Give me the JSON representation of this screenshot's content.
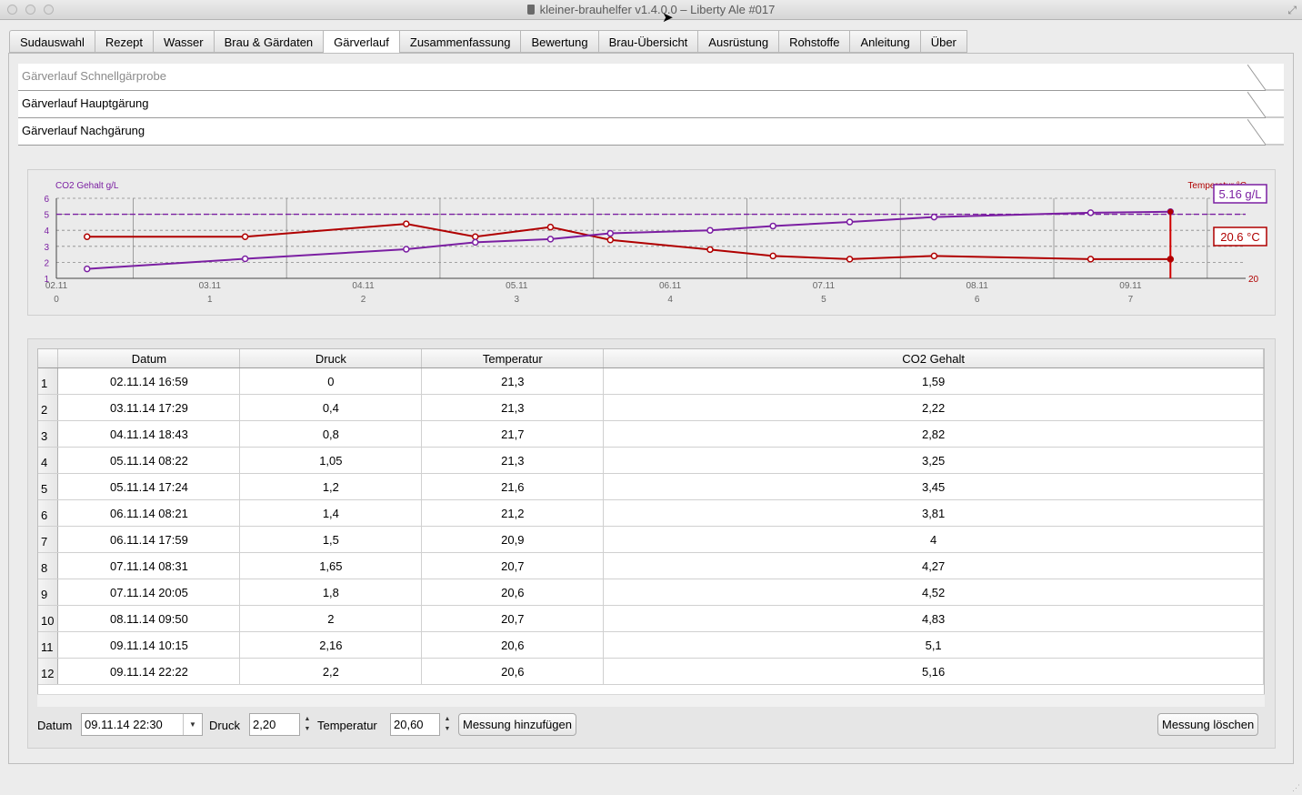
{
  "window": {
    "title": "kleiner-brauhelfer v1.4.0.0 – Liberty Ale #017"
  },
  "tabs": [
    {
      "label": "Sudauswahl",
      "active": false
    },
    {
      "label": "Rezept",
      "active": false
    },
    {
      "label": "Wasser",
      "active": false
    },
    {
      "label": "Brau & Gärdaten",
      "active": false
    },
    {
      "label": "Gärverlauf",
      "active": true
    },
    {
      "label": "Zusammenfassung",
      "active": false
    },
    {
      "label": "Bewertung",
      "active": false
    },
    {
      "label": "Brau-Übersicht",
      "active": false
    },
    {
      "label": "Ausrüstung",
      "active": false
    },
    {
      "label": "Rohstoffe",
      "active": false
    },
    {
      "label": "Anleitung",
      "active": false
    },
    {
      "label": "Über",
      "active": false
    }
  ],
  "sections": {
    "schnellgaerprobe": "Gärverlauf Schnellgärprobe",
    "hauptgaerung": "Gärverlauf Hauptgärung",
    "nachgaerung": "Gärverlauf Nachgärung"
  },
  "chart_data": {
    "type": "line",
    "left_axis_label": "CO2 Gehalt g/L",
    "right_axis_label": "Temperatur °C",
    "left_ylim": [
      1,
      6
    ],
    "left_ticks": [
      "1",
      "2",
      "3",
      "4",
      "5",
      "6"
    ],
    "right_tick_label": "20",
    "target_co2": 5,
    "x_labels": [
      {
        "date": "02.11",
        "day": "0"
      },
      {
        "date": "03.11",
        "day": "1"
      },
      {
        "date": "04.11",
        "day": "2"
      },
      {
        "date": "05.11",
        "day": "3"
      },
      {
        "date": "06.11",
        "day": "4"
      },
      {
        "date": "07.11",
        "day": "5"
      },
      {
        "date": "08.11",
        "day": "6"
      },
      {
        "date": "09.11",
        "day": "7"
      }
    ],
    "x_days": [
      0.2,
      1.23,
      2.28,
      2.73,
      3.22,
      3.61,
      4.26,
      4.67,
      5.17,
      5.72,
      6.74,
      7.26
    ],
    "series": [
      {
        "name": "CO2 Gehalt",
        "color": "#7b1fa2",
        "values": [
          1.59,
          2.22,
          2.82,
          3.25,
          3.45,
          3.81,
          4,
          4.27,
          4.52,
          4.83,
          5.1,
          5.16
        ]
      },
      {
        "name": "Temperatur",
        "color": "#b00000",
        "values": [
          21.3,
          21.3,
          21.7,
          21.3,
          21.6,
          21.2,
          20.9,
          20.7,
          20.6,
          20.7,
          20.6,
          20.6
        ]
      }
    ],
    "callout_co2": "5.16 g/L",
    "callout_temp": "20.6 °C"
  },
  "table": {
    "columns": [
      "Datum",
      "Druck",
      "Temperatur",
      "CO2 Gehalt"
    ],
    "rows": [
      {
        "num": "1",
        "datum": "02.11.14 16:59",
        "druck": "0",
        "temp": "21,3",
        "co2": "1,59"
      },
      {
        "num": "2",
        "datum": "03.11.14 17:29",
        "druck": "0,4",
        "temp": "21,3",
        "co2": "2,22"
      },
      {
        "num": "3",
        "datum": "04.11.14 18:43",
        "druck": "0,8",
        "temp": "21,7",
        "co2": "2,82"
      },
      {
        "num": "4",
        "datum": "05.11.14 08:22",
        "druck": "1,05",
        "temp": "21,3",
        "co2": "3,25"
      },
      {
        "num": "5",
        "datum": "05.11.14 17:24",
        "druck": "1,2",
        "temp": "21,6",
        "co2": "3,45"
      },
      {
        "num": "6",
        "datum": "06.11.14 08:21",
        "druck": "1,4",
        "temp": "21,2",
        "co2": "3,81"
      },
      {
        "num": "7",
        "datum": "06.11.14 17:59",
        "druck": "1,5",
        "temp": "20,9",
        "co2": "4"
      },
      {
        "num": "8",
        "datum": "07.11.14 08:31",
        "druck": "1,65",
        "temp": "20,7",
        "co2": "4,27"
      },
      {
        "num": "9",
        "datum": "07.11.14 20:05",
        "druck": "1,8",
        "temp": "20,6",
        "co2": "4,52"
      },
      {
        "num": "10",
        "datum": "08.11.14 09:50",
        "druck": "2",
        "temp": "20,7",
        "co2": "4,83"
      },
      {
        "num": "11",
        "datum": "09.11.14 10:15",
        "druck": "2,16",
        "temp": "20,6",
        "co2": "5,1"
      },
      {
        "num": "12",
        "datum": "09.11.14 22:22",
        "druck": "2,2",
        "temp": "20,6",
        "co2": "5,16"
      }
    ]
  },
  "form": {
    "datum_label": "Datum",
    "datum_value": "09.11.14 22:30",
    "druck_label": "Druck",
    "druck_value": "2,20",
    "temperatur_label": "Temperatur",
    "temperatur_value": "20,60",
    "add_button": "Messung hinzufügen",
    "delete_button": "Messung löschen"
  }
}
